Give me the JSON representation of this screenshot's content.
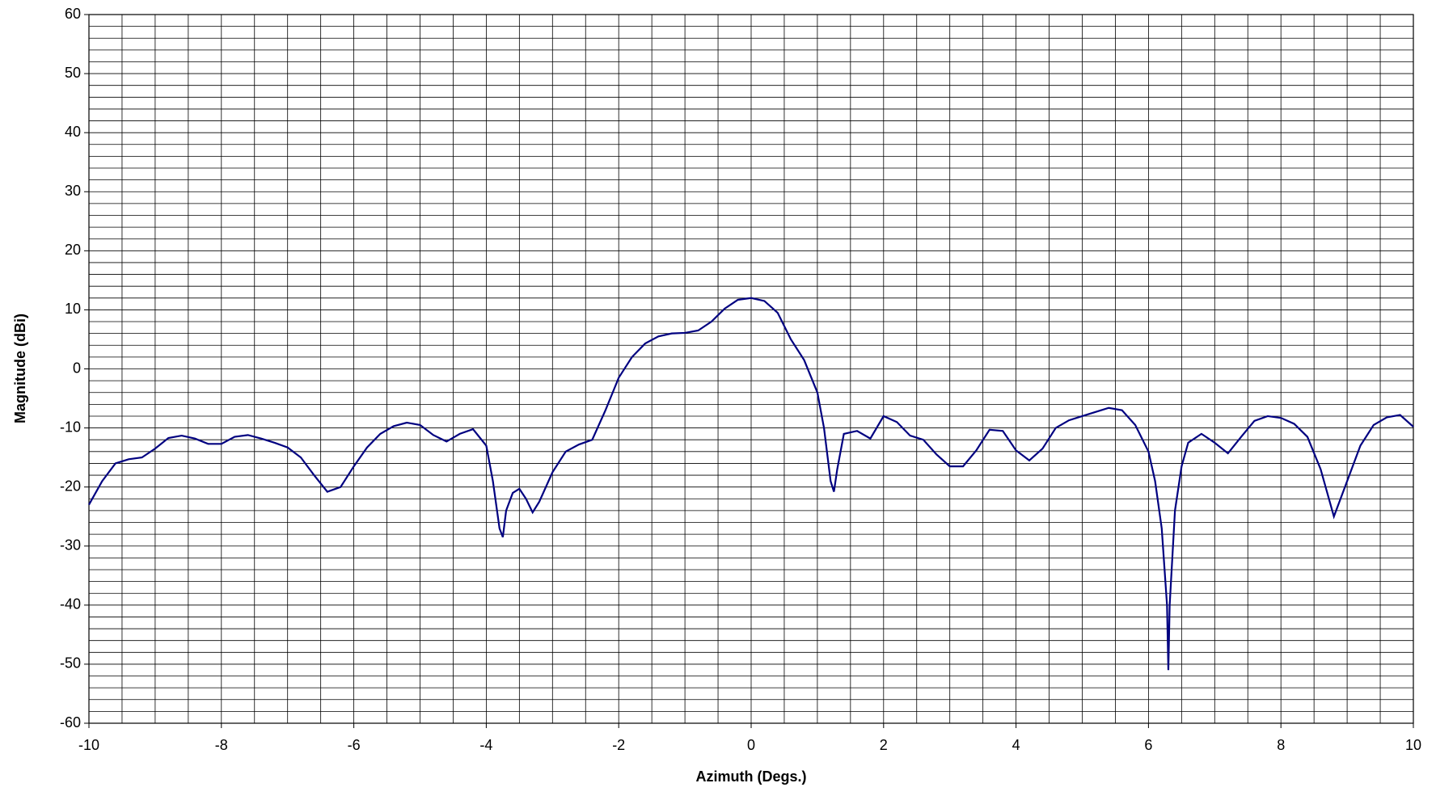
{
  "chart_data": {
    "type": "line",
    "x_label": "Azimuth (Degs.)",
    "y_label": "Magnitude (dBi)",
    "xlim": [
      -10,
      10
    ],
    "ylim": [
      -60,
      60
    ],
    "xticks": [
      -10,
      -8,
      -6,
      -4,
      -2,
      0,
      2,
      4,
      6,
      8,
      10
    ],
    "yticks": [
      -60,
      -50,
      -40,
      -30,
      -20,
      -10,
      0,
      10,
      20,
      30,
      40,
      50,
      60
    ],
    "x_minor_step": 0.5,
    "y_minor_step": 2,
    "grid": true,
    "series": [
      {
        "color": "#000080",
        "x": [
          -10,
          -9.8,
          -9.6,
          -9.4,
          -9.2,
          -9.0,
          -8.8,
          -8.6,
          -8.4,
          -8.2,
          -8.0,
          -7.8,
          -7.6,
          -7.4,
          -7.2,
          -7.0,
          -6.8,
          -6.6,
          -6.4,
          -6.2,
          -6.0,
          -5.8,
          -5.6,
          -5.4,
          -5.2,
          -5.0,
          -4.8,
          -4.6,
          -4.4,
          -4.2,
          -4.0,
          -3.9,
          -3.8,
          -3.75,
          -3.7,
          -3.6,
          -3.5,
          -3.4,
          -3.3,
          -3.2,
          -3.0,
          -2.8,
          -2.6,
          -2.4,
          -2.2,
          -2.0,
          -1.8,
          -1.6,
          -1.4,
          -1.2,
          -1.0,
          -0.8,
          -0.6,
          -0.4,
          -0.2,
          0,
          0.2,
          0.4,
          0.6,
          0.8,
          1.0,
          1.1,
          1.2,
          1.25,
          1.3,
          1.4,
          1.6,
          1.8,
          2.0,
          2.2,
          2.4,
          2.6,
          2.8,
          3.0,
          3.2,
          3.4,
          3.6,
          3.8,
          4.0,
          4.2,
          4.4,
          4.6,
          4.8,
          5.0,
          5.2,
          5.4,
          5.6,
          5.8,
          6.0,
          6.1,
          6.2,
          6.28,
          6.3,
          6.32,
          6.4,
          6.5,
          6.6,
          6.8,
          7.0,
          7.2,
          7.4,
          7.6,
          7.8,
          8.0,
          8.2,
          8.4,
          8.6,
          8.8,
          9.0,
          9.2,
          9.4,
          9.6,
          9.8,
          10.0
        ],
        "values": [
          -23,
          -19,
          -16,
          -15.3,
          -15,
          -13.5,
          -11.7,
          -11.3,
          -11.8,
          -12.7,
          -12.7,
          -11.5,
          -11.2,
          -11.8,
          -12.5,
          -13.3,
          -15,
          -18,
          -20.8,
          -20,
          -16.5,
          -13.3,
          -11,
          -9.7,
          -9.1,
          -9.5,
          -11.2,
          -12.3,
          -11,
          -10.2,
          -13,
          -19,
          -27,
          -28.5,
          -24,
          -21,
          -20.3,
          -22,
          -24.3,
          -22.5,
          -17.5,
          -14,
          -12.8,
          -12,
          -7,
          -1.5,
          2,
          4.3,
          5.5,
          6,
          6.1,
          6.5,
          8,
          10.2,
          11.7,
          12,
          11.5,
          9.5,
          5,
          1.5,
          -4,
          -10,
          -19,
          -20.8,
          -17,
          -11,
          -10.5,
          -11.8,
          -8,
          -9,
          -11.3,
          -12,
          -14.5,
          -16.5,
          -16.5,
          -13.8,
          -10.3,
          -10.5,
          -13.8,
          -15.5,
          -13.5,
          -10,
          -8.7,
          -8,
          -7.3,
          -6.6,
          -7,
          -9.5,
          -14,
          -19,
          -27,
          -40,
          -51,
          -40,
          -24,
          -16.5,
          -12.5,
          -11,
          -12.5,
          -14.3,
          -11.5,
          -8.8,
          -8,
          -8.3,
          -9.3,
          -11.5,
          -17,
          -25,
          -19,
          -13,
          -9.5,
          -8.2,
          -7.8,
          -9.8
        ]
      }
    ]
  }
}
